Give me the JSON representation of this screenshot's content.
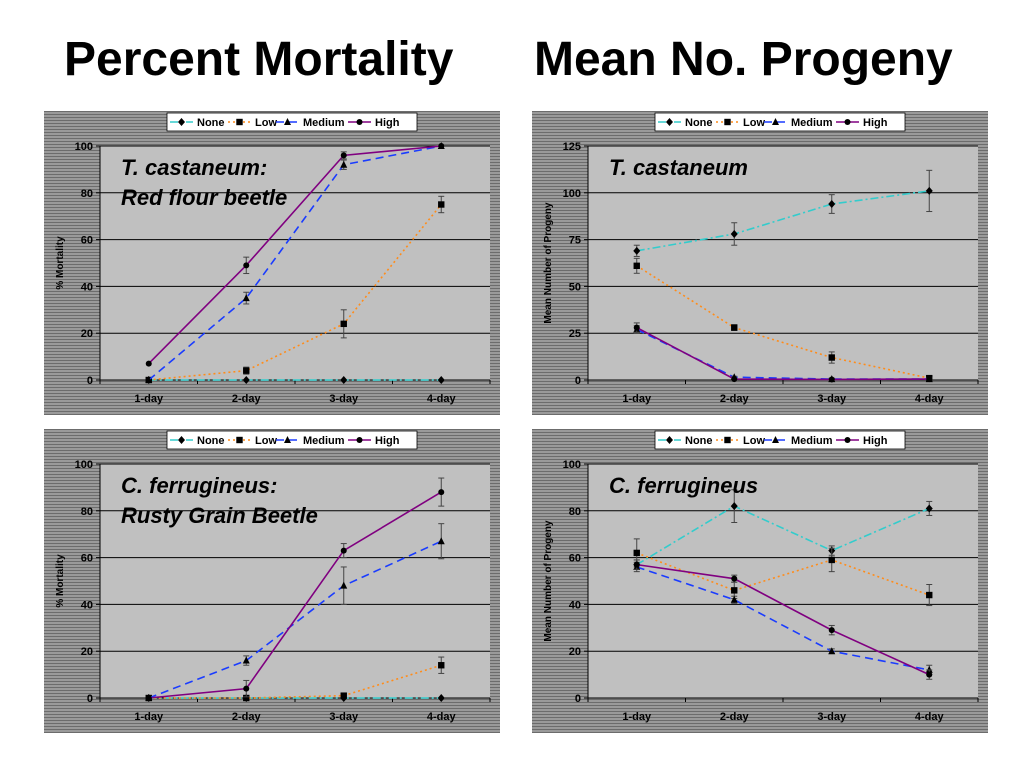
{
  "page": {
    "heading_left": "Percent Mortality",
    "heading_right": "Mean No. Progeny"
  },
  "legend": [
    "None",
    "Low",
    "Medium",
    "High"
  ],
  "series_colors": {
    "None": "#33cccc",
    "Low": "#ff8c1a",
    "Medium": "#1a3cff",
    "High": "#800080"
  },
  "chart_data": [
    {
      "type": "line",
      "species_label": [
        "T. castaneum:",
        "Red flour beetle"
      ],
      "ylabel": "% Mortality",
      "categories": [
        "1-day",
        "2-day",
        "3-day",
        "4-day"
      ],
      "ylim": [
        0,
        100
      ],
      "yticks": [
        0,
        20,
        40,
        60,
        80,
        100
      ],
      "grid": true,
      "legend_position": "top-center",
      "series": [
        {
          "name": "None",
          "values": [
            0,
            0,
            0,
            0
          ],
          "errors": [
            0,
            0,
            0,
            0
          ]
        },
        {
          "name": "Low",
          "values": [
            0,
            4,
            24,
            75
          ],
          "errors": [
            0,
            1.5,
            6,
            3.5
          ]
        },
        {
          "name": "Medium",
          "values": [
            0,
            35,
            92,
            100
          ],
          "errors": [
            0,
            2.5,
            2,
            0
          ]
        },
        {
          "name": "High",
          "values": [
            7,
            49,
            96,
            100
          ],
          "errors": [
            0,
            3.5,
            1.5,
            0
          ]
        }
      ]
    },
    {
      "type": "line",
      "species_label": [
        "T. castaneum"
      ],
      "ylabel": "Mean Number of Progeny",
      "categories": [
        "1-day",
        "2-day",
        "3-day",
        "4-day"
      ],
      "ylim": [
        0,
        125
      ],
      "yticks": [
        0,
        25,
        50,
        75,
        100,
        125
      ],
      "grid": true,
      "legend_position": "top-center",
      "series": [
        {
          "name": "None",
          "values": [
            69,
            78,
            94,
            101
          ],
          "errors": [
            3,
            6,
            5,
            11
          ]
        },
        {
          "name": "Low",
          "values": [
            61,
            28,
            12,
            1
          ],
          "errors": [
            4,
            1.5,
            3,
            1
          ]
        },
        {
          "name": "Medium",
          "values": [
            27,
            1.5,
            0.5,
            0.5
          ],
          "errors": [
            2,
            0.5,
            0.5,
            0.5
          ]
        },
        {
          "name": "High",
          "values": [
            28,
            0.5,
            0.3,
            0.5
          ],
          "errors": [
            2.5,
            0.5,
            0.5,
            0.5
          ]
        }
      ]
    },
    {
      "type": "line",
      "species_label": [
        "C. ferrugineus:",
        "Rusty Grain Beetle"
      ],
      "ylabel": "% Mortality",
      "categories": [
        "1-day",
        "2-day",
        "3-day",
        "4-day"
      ],
      "ylim": [
        0,
        100
      ],
      "yticks": [
        0,
        20,
        40,
        60,
        80,
        100
      ],
      "grid": true,
      "legend_position": "top-center",
      "series": [
        {
          "name": "None",
          "values": [
            0,
            0,
            0,
            0
          ],
          "errors": [
            0,
            0,
            0,
            0
          ]
        },
        {
          "name": "Low",
          "values": [
            0,
            0,
            1,
            14
          ],
          "errors": [
            0,
            0,
            1,
            3.5
          ]
        },
        {
          "name": "Medium",
          "values": [
            0,
            16,
            48,
            67
          ],
          "errors": [
            0,
            2,
            8,
            7.5
          ]
        },
        {
          "name": "High",
          "values": [
            0,
            4,
            63,
            88
          ],
          "errors": [
            0,
            3.5,
            3,
            6
          ]
        }
      ]
    },
    {
      "type": "line",
      "species_label": [
        "C. ferrugineus"
      ],
      "ylabel": "Mean Number of Progeny",
      "categories": [
        "1-day",
        "2-day",
        "3-day",
        "4-day"
      ],
      "ylim": [
        0,
        100
      ],
      "yticks": [
        0,
        20,
        40,
        60,
        80,
        100
      ],
      "grid": true,
      "legend_position": "top-center",
      "series": [
        {
          "name": "None",
          "values": [
            57,
            82,
            63,
            81
          ],
          "errors": [
            2,
            7,
            2,
            3
          ]
        },
        {
          "name": "Low",
          "values": [
            62,
            46,
            59,
            44
          ],
          "errors": [
            6,
            3.5,
            5,
            4.5
          ]
        },
        {
          "name": "Medium",
          "values": [
            56,
            42,
            20,
            12
          ],
          "errors": [
            2,
            1.5,
            1,
            2
          ]
        },
        {
          "name": "High",
          "values": [
            57,
            51,
            29,
            10
          ],
          "errors": [
            2,
            1.5,
            2,
            2
          ]
        }
      ]
    }
  ]
}
